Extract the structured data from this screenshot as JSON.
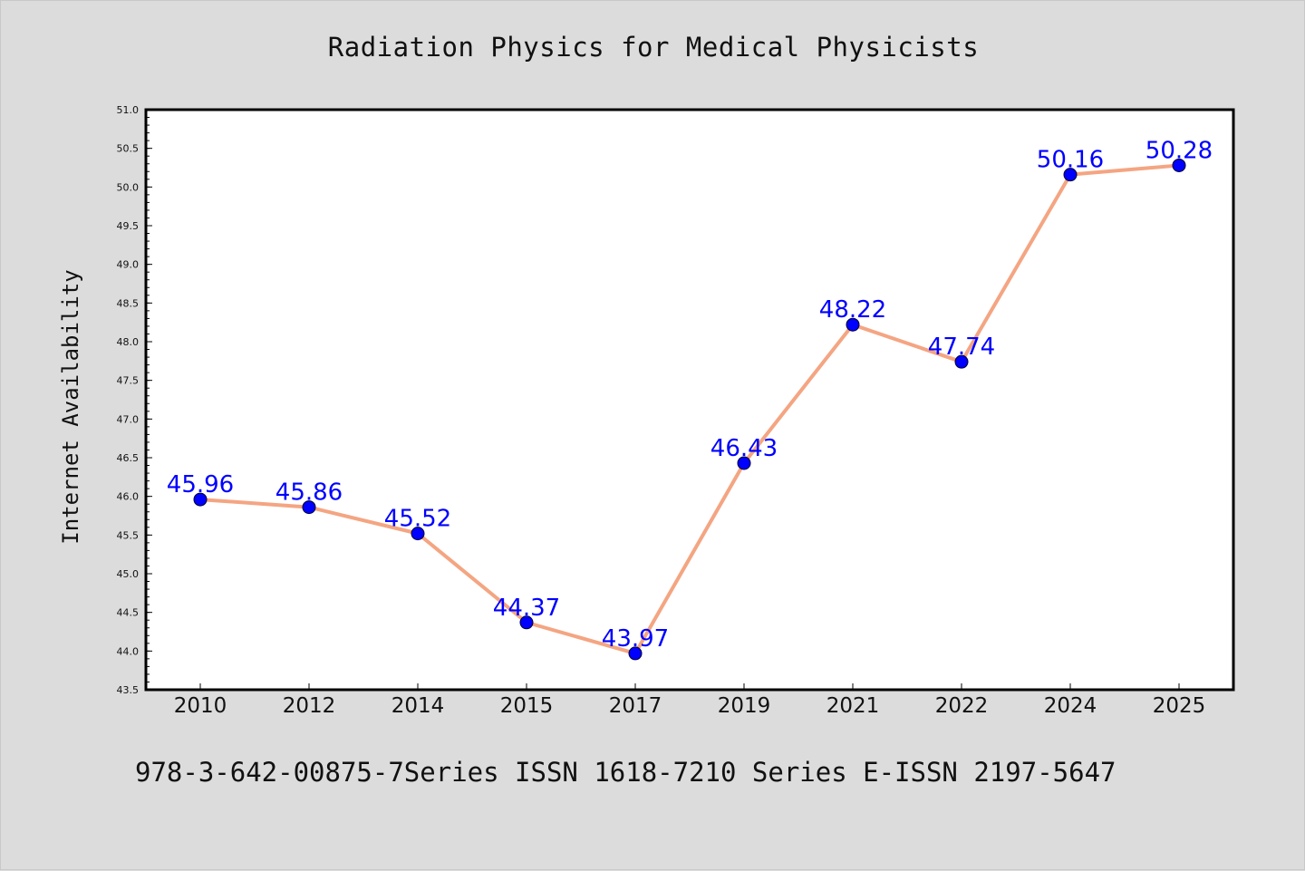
{
  "page": {
    "title": "Radiation Physics for Medical Physicists",
    "footer": "978-3-642-00875-7Series ISSN 1618-7210 Series E-ISSN 2197-5647"
  },
  "colors": {
    "background": "#dcdcdc",
    "plot_background": "#ffffff",
    "line": "#f4a582",
    "marker": "#0000ff",
    "data_label": "#0000ff"
  },
  "chart_data": {
    "type": "line",
    "title": "Radiation Physics for Medical Physicists",
    "xlabel": "",
    "ylabel": "Internet Availability",
    "categories": [
      "2010",
      "2012",
      "2014",
      "2015",
      "2017",
      "2019",
      "2021",
      "2022",
      "2024",
      "2025"
    ],
    "series": [
      {
        "values": [
          45.96,
          45.86,
          45.52,
          44.37,
          43.97,
          46.43,
          48.22,
          47.74,
          50.16,
          50.28
        ],
        "data_labels": [
          "45.96",
          "45.86",
          "45.52",
          "44.37",
          "43.97",
          "46.43",
          "48.22",
          "47.74",
          "50.16",
          "50.28"
        ]
      }
    ],
    "ylim": [
      43.5,
      51.0
    ],
    "yticks": [
      "43.5",
      "44.0",
      "44.5",
      "45.0",
      "45.5",
      "46.0",
      "46.5",
      "47.0",
      "47.5",
      "48.0",
      "48.5",
      "49.0",
      "49.5",
      "50.0",
      "50.5",
      "51.0"
    ],
    "grid": false,
    "legend": "none"
  }
}
